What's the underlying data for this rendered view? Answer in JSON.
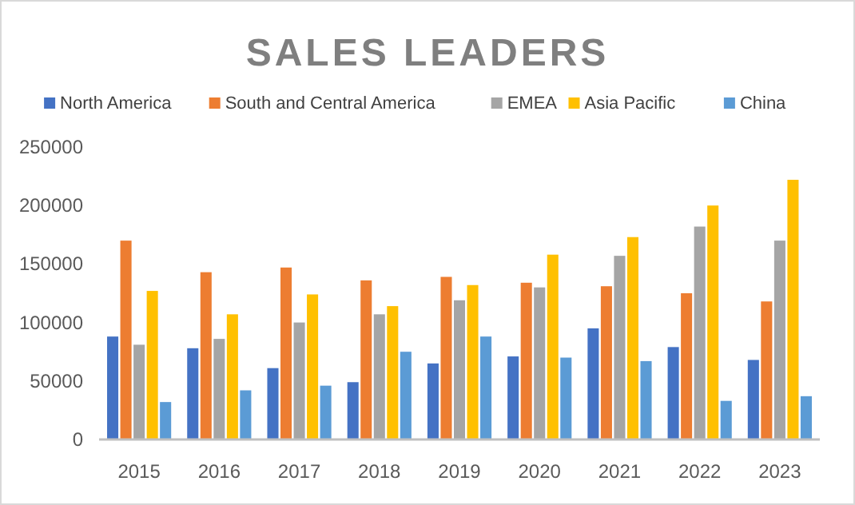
{
  "chart_data": {
    "type": "bar",
    "title": "SALES LEADERS",
    "categories": [
      "2015",
      "2016",
      "2017",
      "2018",
      "2019",
      "2020",
      "2021",
      "2022",
      "2023"
    ],
    "series": [
      {
        "name": "North America",
        "color": "#4472c4",
        "values": [
          88000,
          78000,
          61000,
          49000,
          65000,
          71000,
          95000,
          79000,
          68000
        ]
      },
      {
        "name": "South and Central America",
        "color": "#ed7d31",
        "values": [
          170000,
          143000,
          147000,
          136000,
          139000,
          134000,
          131000,
          125000,
          118000
        ]
      },
      {
        "name": "EMEA",
        "color": "#a5a5a5",
        "values": [
          81000,
          86000,
          100000,
          107000,
          119000,
          130000,
          157000,
          182000,
          170000
        ]
      },
      {
        "name": "Asia Pacific",
        "color": "#ffc000",
        "values": [
          127000,
          107000,
          124000,
          114000,
          132000,
          158000,
          173000,
          200000,
          222000
        ]
      },
      {
        "name": "China",
        "color": "#5b9bd5",
        "values": [
          32000,
          42000,
          46000,
          75000,
          88000,
          70000,
          67000,
          33000,
          37000
        ]
      }
    ],
    "ylim": [
      0,
      250000
    ],
    "yticks": [
      0,
      50000,
      100000,
      150000,
      200000,
      250000
    ],
    "grid": false,
    "legend": "top"
  }
}
